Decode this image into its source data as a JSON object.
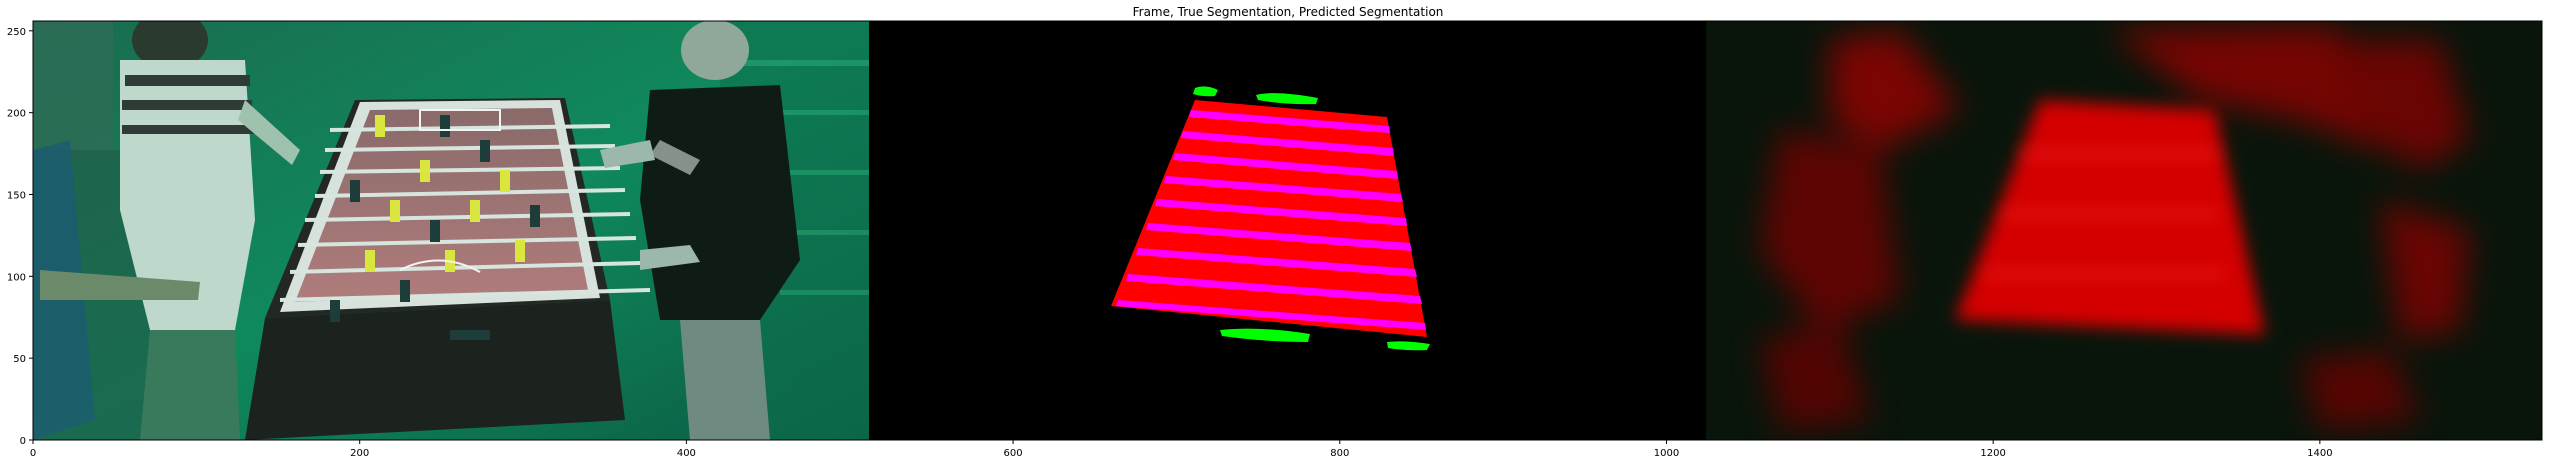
{
  "figure": {
    "title": "Frame, True Segmentation, Predicted Segmentation",
    "x_ticks": [
      "0",
      "200",
      "400",
      "600",
      "800",
      "1000",
      "1200",
      "1400"
    ],
    "y_ticks": [
      "0",
      "50",
      "100",
      "150",
      "200",
      "250"
    ],
    "x_tick_values": [
      0,
      200,
      400,
      600,
      800,
      1000,
      1200,
      1400
    ],
    "y_tick_values": [
      0,
      50,
      100,
      150,
      200,
      250
    ],
    "x_range": [
      0,
      1536
    ],
    "y_range": [
      256,
      0
    ]
  },
  "panels": [
    {
      "name": "frame",
      "content": "camera frame of people playing table football"
    },
    {
      "name": "true-segmentation",
      "content": "red table surface with magenta rod stripes and green player hand masks on black"
    },
    {
      "name": "predicted-segmentation",
      "content": "blurry red table region prediction on dark background"
    }
  ],
  "colors": {
    "table_red": "#ff0000",
    "rod_magenta": "#ff00ff",
    "hand_green": "#00ff00",
    "frame_tint": "#0e8a5c",
    "background": "#000000"
  }
}
